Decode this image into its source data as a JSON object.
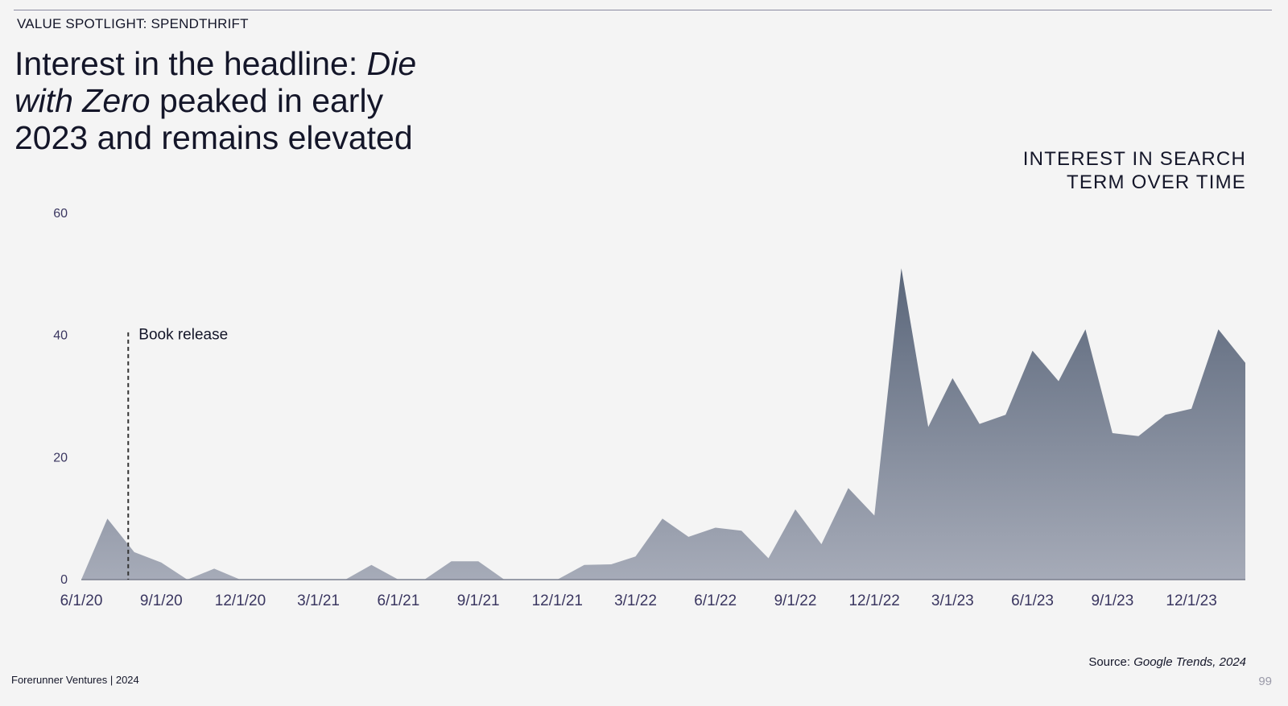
{
  "header": {
    "section_label": "VALUE SPOTLIGHT: SPENDTHRIFT",
    "headline_part1": "Interest in the headline: ",
    "headline_em": "Die with Zero",
    "headline_part2": " peaked in early 2023 and remains elevated"
  },
  "chart_data": {
    "type": "area",
    "title_line1": "INTEREST IN SEARCH",
    "title_line2": "TERM OVER TIME",
    "xlabel": "",
    "ylabel": "",
    "ylim": [
      0,
      60
    ],
    "y_ticks": [
      0,
      20,
      40,
      60
    ],
    "x_tick_labels": [
      "6/1/20",
      "9/1/20",
      "12/1/20",
      "3/1/21",
      "6/1/21",
      "9/1/21",
      "12/1/21",
      "3/1/22",
      "6/1/22",
      "9/1/22",
      "12/1/22",
      "3/1/23",
      "6/1/23",
      "9/1/23",
      "12/1/23"
    ],
    "grid": false,
    "fill_colors": [
      "#5a667a",
      "#a6abb8"
    ],
    "x": [
      "2020-06-01",
      "2020-07-01",
      "2020-08-01",
      "2020-09-01",
      "2020-10-01",
      "2020-11-01",
      "2020-12-01",
      "2021-01-01",
      "2021-02-01",
      "2021-03-01",
      "2021-04-01",
      "2021-05-01",
      "2021-06-01",
      "2021-07-01",
      "2021-08-01",
      "2021-09-01",
      "2021-10-01",
      "2021-11-01",
      "2021-12-01",
      "2022-01-01",
      "2022-02-01",
      "2022-03-01",
      "2022-04-01",
      "2022-05-01",
      "2022-06-01",
      "2022-07-01",
      "2022-08-01",
      "2022-09-01",
      "2022-10-01",
      "2022-11-01",
      "2022-12-01",
      "2023-01-01",
      "2023-02-01",
      "2023-03-01",
      "2023-04-01",
      "2023-05-01",
      "2023-06-01",
      "2023-07-01",
      "2023-08-01",
      "2023-09-01",
      "2023-10-01",
      "2023-11-01",
      "2023-12-01",
      "2024-01-01",
      "2024-02-01"
    ],
    "values": [
      0,
      10,
      4.5,
      2.8,
      0,
      1.8,
      0,
      0,
      0,
      0,
      0,
      2.4,
      0,
      0,
      3,
      3,
      0,
      0,
      0,
      2.4,
      2.5,
      3.8,
      10,
      7,
      8.5,
      8,
      3.5,
      11.5,
      5.8,
      15,
      10.5,
      51,
      25,
      33,
      25.5,
      27,
      37.5,
      32.5,
      41,
      24,
      23.5,
      27,
      28,
      41,
      35.5
    ],
    "annotation": {
      "label": "Book release",
      "x": "2020-07-25"
    }
  },
  "footer": {
    "source_prefix": "Source: ",
    "source_em": "Google Trends, 2024",
    "brand": "Forerunner Ventures | 2024",
    "page_number": "99"
  }
}
